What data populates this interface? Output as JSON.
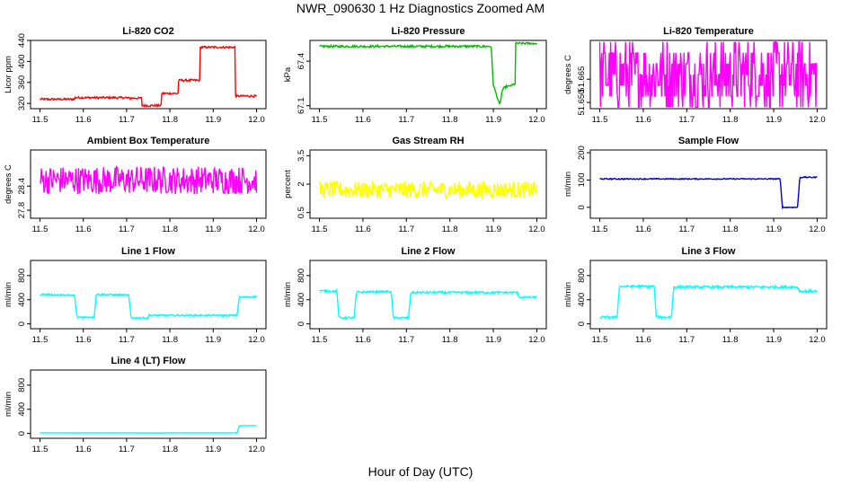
{
  "figure": {
    "title": "NWR_090630  1 Hz Diagnostics Zoomed AM",
    "xlabel": "Hour of Day (UTC)"
  },
  "chart_data": [
    {
      "type": "line",
      "title": "Li-820 CO2",
      "ylabel": "Licor ppm",
      "color": "#ff0000",
      "xlim": [
        11.5,
        12.0
      ],
      "ylim": [
        310,
        440
      ],
      "xticks": [
        "11.5",
        "11.6",
        "11.7",
        "11.8",
        "11.9",
        "12.0"
      ],
      "yticks": [
        320,
        360,
        400,
        440
      ],
      "series": [
        {
          "x": [
            11.5,
            11.58,
            11.58,
            11.7,
            11.7,
            11.735,
            11.735,
            11.78,
            11.78,
            11.82,
            11.82,
            11.87,
            11.87,
            11.95,
            11.95,
            12.0
          ],
          "values": [
            328,
            328,
            331,
            331,
            330,
            330,
            316,
            316,
            339,
            339,
            364,
            364,
            427,
            427,
            334,
            334
          ],
          "noise": 2
        }
      ]
    },
    {
      "type": "line",
      "title": "Li-820 Pressure",
      "ylabel": "kPa",
      "color": "#00bb00",
      "xlim": [
        11.5,
        12.0
      ],
      "ylim": [
        67.08,
        67.54
      ],
      "xticks": [
        "11.5",
        "11.6",
        "11.7",
        "11.8",
        "11.9",
        "12.0"
      ],
      "yticks": [
        67.1,
        67.4
      ],
      "series": [
        {
          "x": [
            11.5,
            11.88,
            11.895,
            11.9,
            11.915,
            11.92,
            11.925,
            11.93,
            11.935,
            11.945,
            11.95,
            11.95,
            12.0
          ],
          "values": [
            67.5,
            67.5,
            67.5,
            67.24,
            67.1,
            67.2,
            67.22,
            67.23,
            67.23,
            67.24,
            67.25,
            67.52,
            67.52
          ],
          "noise": 0.007
        }
      ]
    },
    {
      "type": "line",
      "title": "Li-820 Temperature",
      "ylabel": "degrees C",
      "color": "#ff00ff",
      "xlim": [
        11.5,
        12.0
      ],
      "ylim": [
        51.646,
        51.69
      ],
      "xticks": [
        "11.5",
        "11.6",
        "11.7",
        "11.8",
        "11.9",
        "12.0"
      ],
      "yticks": [
        "51.650",
        "51.665"
      ],
      "series": [
        {
          "x": [
            11.5,
            12.0
          ],
          "values": [
            51.668,
            51.668
          ],
          "noise": 0.022,
          "quantized": true
        }
      ]
    },
    {
      "type": "line",
      "title": "Ambient Box Temperature",
      "ylabel": "degrees C",
      "color": "#ff00ff",
      "xlim": [
        11.5,
        12.0
      ],
      "ylim": [
        27.6,
        29.3
      ],
      "xticks": [
        "11.5",
        "11.6",
        "11.7",
        "11.8",
        "11.9",
        "12.0"
      ],
      "yticks": [
        27.8,
        28.4
      ],
      "series": [
        {
          "x": [
            11.5,
            12.0
          ],
          "values": [
            28.55,
            28.55
          ],
          "noise": 0.35
        }
      ]
    },
    {
      "type": "line",
      "title": "Gas Stream RH",
      "ylabel": "percent",
      "color": "#ffff00",
      "xlim": [
        11.5,
        12.0
      ],
      "ylim": [
        0.2,
        3.8
      ],
      "xticks": [
        "11.5",
        "11.6",
        "11.7",
        "11.8",
        "11.9",
        "12.0"
      ],
      "yticks": [
        0.5,
        2.0,
        3.5
      ],
      "series": [
        {
          "x": [
            11.5,
            12.0
          ],
          "values": [
            1.7,
            1.7
          ],
          "noise": 0.45
        }
      ]
    },
    {
      "type": "line",
      "title": "Sample Flow",
      "ylabel": "ml/min",
      "color": "#0000cc",
      "xlim": [
        11.5,
        12.0
      ],
      "ylim": [
        -40,
        210
      ],
      "xticks": [
        "11.5",
        "11.6",
        "11.7",
        "11.8",
        "11.9",
        "12.0"
      ],
      "yticks": [
        0,
        100,
        200
      ],
      "series": [
        {
          "x": [
            11.5,
            11.915,
            11.92,
            11.955,
            11.96,
            12.0
          ],
          "values": [
            104,
            104,
            0,
            0,
            110,
            110
          ],
          "noise": 2
        }
      ]
    },
    {
      "type": "line",
      "title": "Line 1 Flow",
      "ylabel": "ml/min",
      "color": "#00ffff",
      "xlim": [
        11.5,
        12.0
      ],
      "ylim": [
        -80,
        1050
      ],
      "xticks": [
        "11.5",
        "11.6",
        "11.7",
        "11.8",
        "11.9",
        "12.0"
      ],
      "yticks": [
        0,
        400,
        800
      ],
      "series": [
        {
          "x": [
            11.5,
            11.58,
            11.585,
            11.625,
            11.63,
            11.705,
            11.71,
            11.75,
            11.75,
            11.955,
            11.96,
            12.0
          ],
          "values": [
            490,
            470,
            110,
            110,
            490,
            475,
            100,
            100,
            140,
            140,
            440,
            450
          ],
          "noise": 14
        }
      ]
    },
    {
      "type": "line",
      "title": "Line 2 Flow",
      "ylabel": "ml/min",
      "color": "#00ffff",
      "xlim": [
        11.5,
        12.0
      ],
      "ylim": [
        -80,
        1050
      ],
      "xticks": [
        "11.5",
        "11.6",
        "11.7",
        "11.8",
        "11.9",
        "12.0"
      ],
      "yticks": [
        0,
        400,
        800
      ],
      "series": [
        {
          "x": [
            11.5,
            11.54,
            11.545,
            11.58,
            11.585,
            11.665,
            11.67,
            11.705,
            11.71,
            11.955,
            11.96,
            12.0
          ],
          "values": [
            545,
            540,
            100,
            100,
            525,
            535,
            100,
            100,
            520,
            520,
            440,
            440
          ],
          "noise": 16
        }
      ]
    },
    {
      "type": "line",
      "title": "Line 3 Flow",
      "ylabel": "ml/min",
      "color": "#00ffff",
      "xlim": [
        11.5,
        12.0
      ],
      "ylim": [
        -80,
        1050
      ],
      "xticks": [
        "11.5",
        "11.6",
        "11.7",
        "11.8",
        "11.9",
        "12.0"
      ],
      "yticks": [
        0,
        400,
        800
      ],
      "series": [
        {
          "x": [
            11.5,
            11.54,
            11.545,
            11.625,
            11.63,
            11.665,
            11.67,
            11.955,
            11.96,
            12.0
          ],
          "values": [
            110,
            110,
            620,
            620,
            110,
            110,
            610,
            610,
            540,
            540
          ],
          "noise": 20
        }
      ]
    },
    {
      "type": "line",
      "title": "Line 4 (LT) Flow",
      "ylabel": "ml/min",
      "color": "#00ffff",
      "xlim": [
        11.5,
        12.0
      ],
      "ylim": [
        -80,
        1050
      ],
      "xticks": [
        "11.5",
        "11.6",
        "11.7",
        "11.8",
        "11.9",
        "12.0"
      ],
      "yticks": [
        0,
        400,
        800
      ],
      "series": [
        {
          "x": [
            11.5,
            11.955,
            11.96,
            12.0
          ],
          "values": [
            10,
            10,
            130,
            130
          ],
          "noise": 1
        }
      ]
    }
  ]
}
